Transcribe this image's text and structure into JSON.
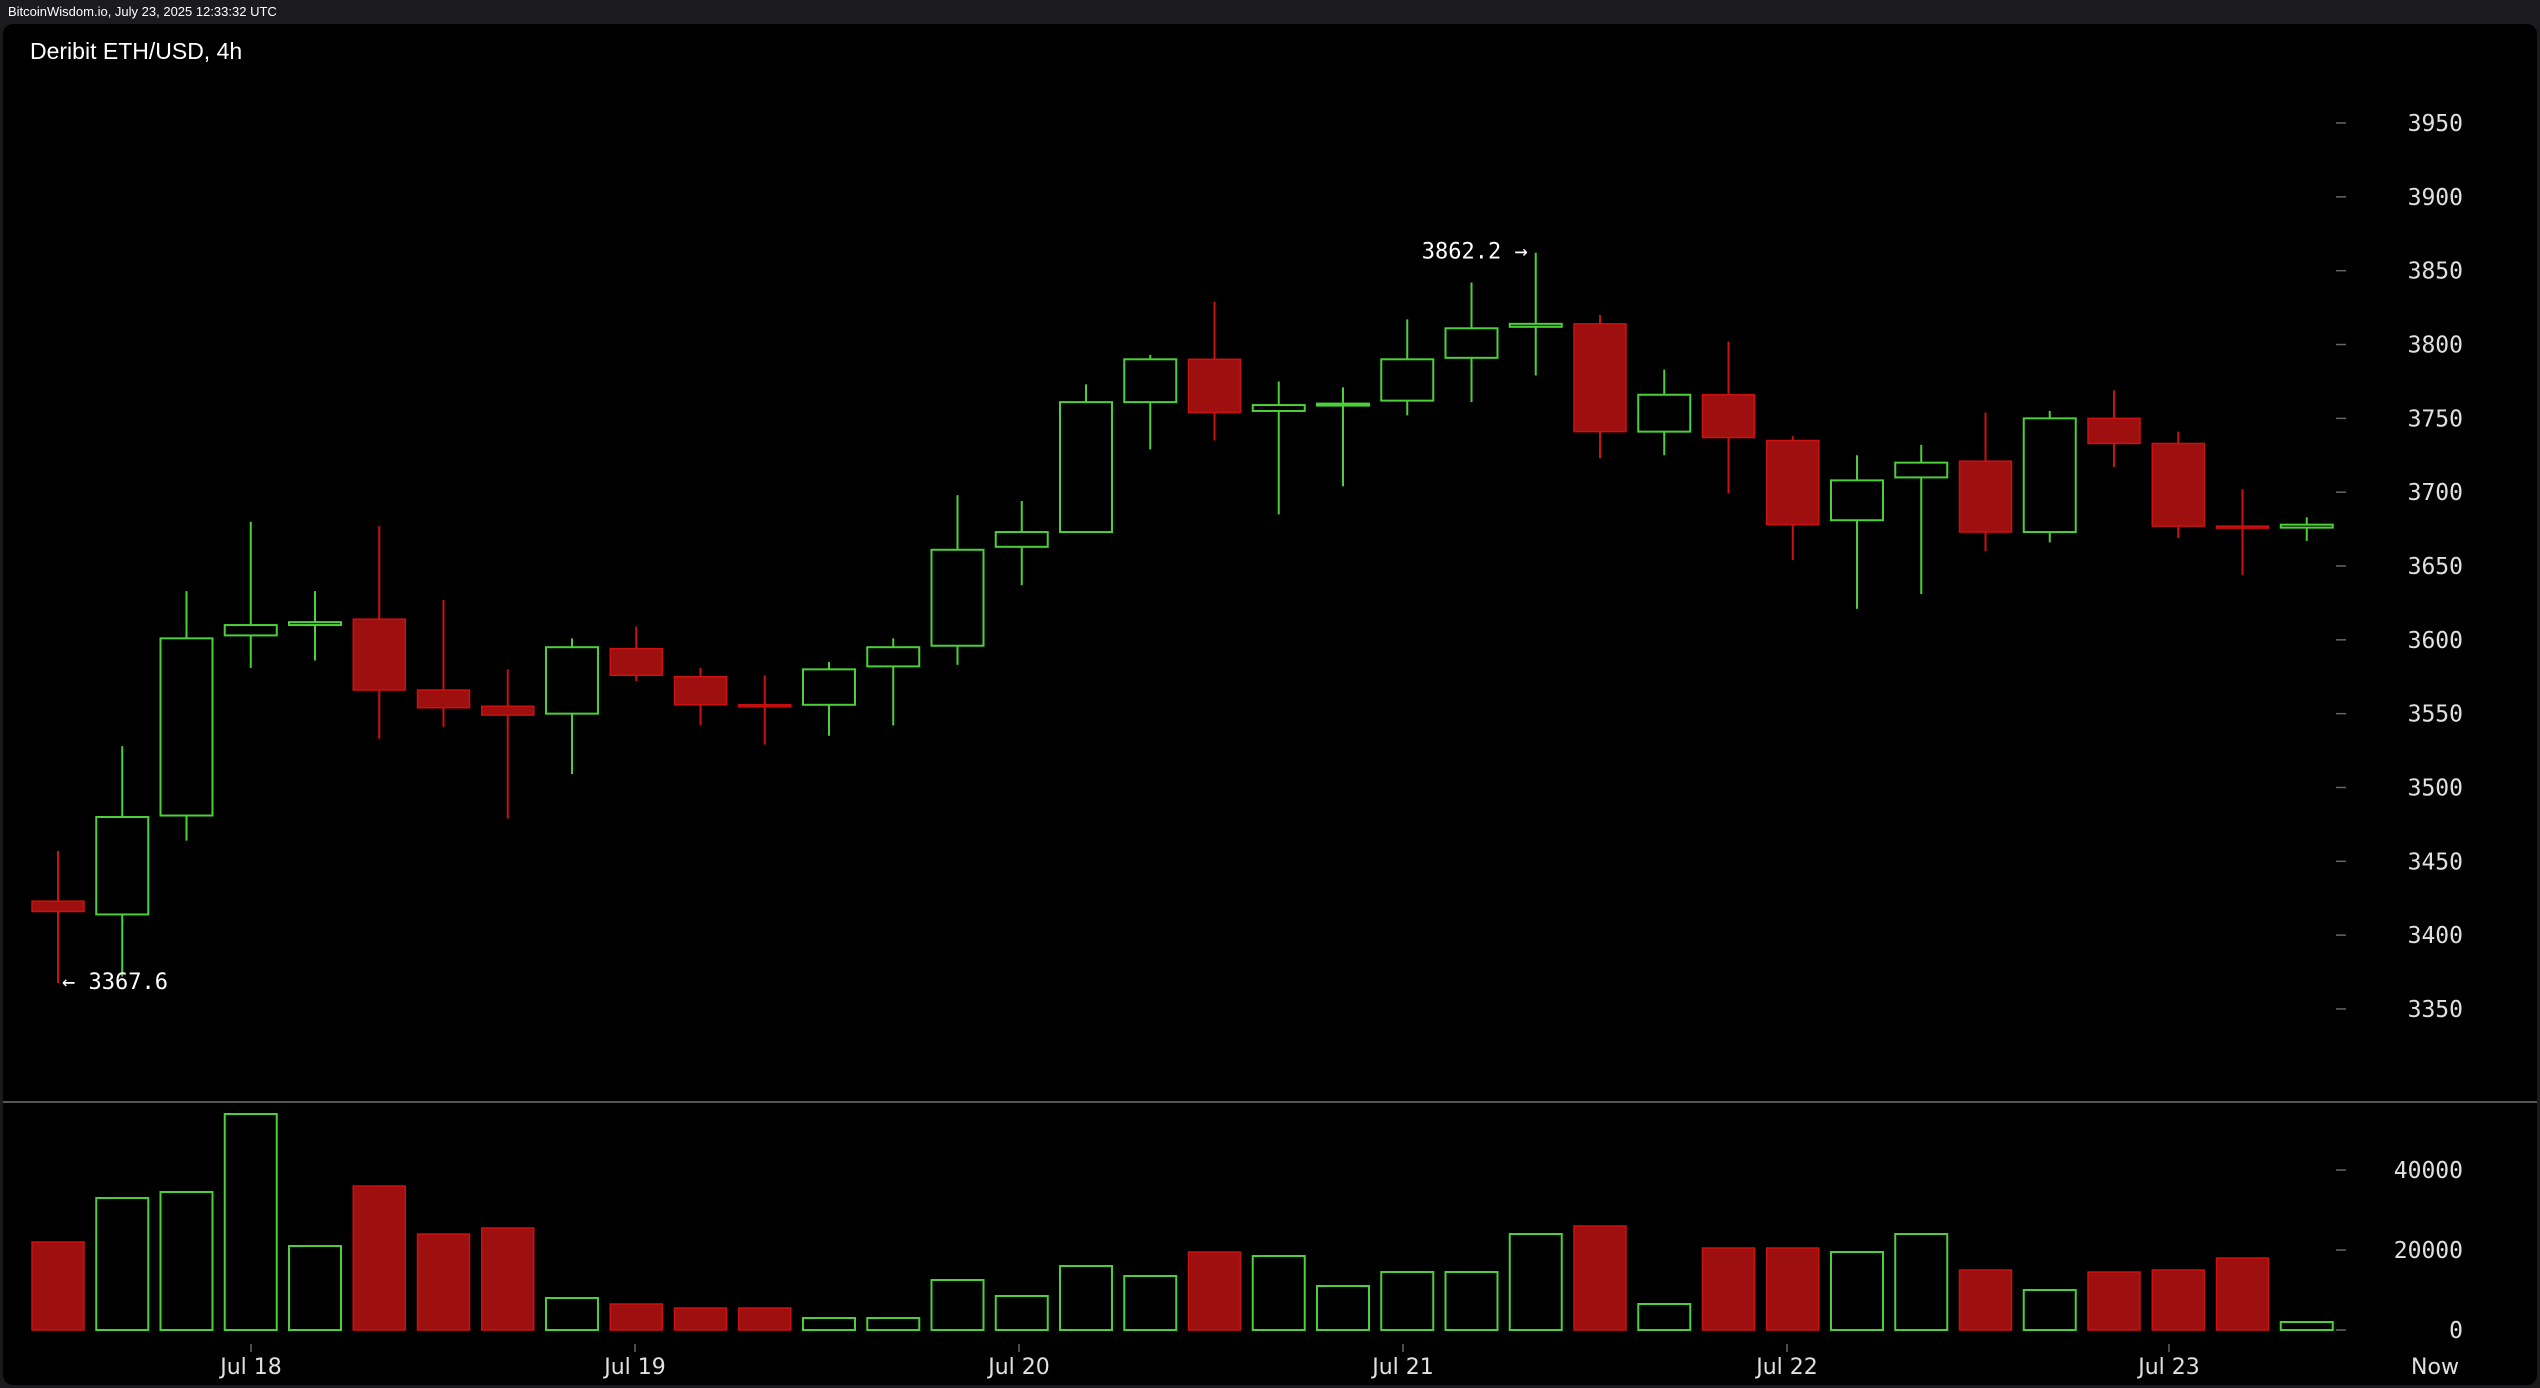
{
  "header": {
    "watermark": "BitcoinWisdom.io, July 23, 2025 12:33:32 UTC"
  },
  "chart_data": {
    "type": "candlestick",
    "title": "Deribit ETH/USD, 4h",
    "colors": {
      "up": "#4cd038",
      "down": "#cc1111",
      "background": "#000000",
      "text": "#e0e0e0"
    },
    "price_axis": {
      "range": [
        3310,
        3990
      ],
      "ticks": [
        3350,
        3400,
        3450,
        3500,
        3550,
        3600,
        3650,
        3700,
        3750,
        3800,
        3850,
        3900,
        3950
      ],
      "position": "right"
    },
    "volume_axis": {
      "range": [
        0,
        56000
      ],
      "ticks": [
        0,
        20000,
        40000
      ],
      "position": "right"
    },
    "x_labels": [
      "Jul 18",
      "Jul 19",
      "Jul 20",
      "Jul 21",
      "Jul 22",
      "Jul 23",
      "Now"
    ],
    "annotations": [
      {
        "text": "3862.2 →",
        "price": 3862.2,
        "candle": 23,
        "type": "high"
      },
      {
        "text": "← 3367.6",
        "price": 3367.6,
        "candle": 0,
        "type": "low"
      }
    ],
    "candles": [
      {
        "o": 3423,
        "h": 3457,
        "l": 3367.6,
        "c": 3416,
        "v": 22000
      },
      {
        "o": 3414,
        "h": 3528,
        "l": 3372,
        "c": 3480,
        "v": 33000
      },
      {
        "o": 3481,
        "h": 3633,
        "l": 3464,
        "c": 3601,
        "v": 34500
      },
      {
        "o": 3603,
        "h": 3680,
        "l": 3581,
        "c": 3610,
        "v": 54000
      },
      {
        "o": 3610,
        "h": 3633,
        "l": 3586,
        "c": 3612,
        "v": 21000
      },
      {
        "o": 3614,
        "h": 3677,
        "l": 3533,
        "c": 3566,
        "v": 36000
      },
      {
        "o": 3566,
        "h": 3627,
        "l": 3541,
        "c": 3554,
        "v": 24000
      },
      {
        "o": 3555,
        "h": 3580,
        "l": 3479,
        "c": 3549,
        "v": 25500
      },
      {
        "o": 3550,
        "h": 3601,
        "l": 3509,
        "c": 3595,
        "v": 8000
      },
      {
        "o": 3594,
        "h": 3609,
        "l": 3572,
        "c": 3576,
        "v": 6500
      },
      {
        "o": 3575,
        "h": 3581,
        "l": 3542,
        "c": 3556,
        "v": 5500
      },
      {
        "o": 3556,
        "h": 3576,
        "l": 3529,
        "c": 3555,
        "v": 5500
      },
      {
        "o": 3556,
        "h": 3585,
        "l": 3535,
        "c": 3580,
        "v": 3000
      },
      {
        "o": 3582,
        "h": 3601,
        "l": 3542,
        "c": 3595,
        "v": 3000
      },
      {
        "o": 3596,
        "h": 3698,
        "l": 3583,
        "c": 3661,
        "v": 12500
      },
      {
        "o": 3663,
        "h": 3694,
        "l": 3637,
        "c": 3673,
        "v": 8500
      },
      {
        "o": 3673,
        "h": 3773,
        "l": 3673,
        "c": 3761,
        "v": 16000
      },
      {
        "o": 3761,
        "h": 3793,
        "l": 3729,
        "c": 3790,
        "v": 13500
      },
      {
        "o": 3790,
        "h": 3829,
        "l": 3735,
        "c": 3754,
        "v": 19500
      },
      {
        "o": 3755,
        "h": 3775,
        "l": 3685,
        "c": 3759,
        "v": 18500
      },
      {
        "o": 3760,
        "h": 3771,
        "l": 3704,
        "c": 3760,
        "v": 11000
      },
      {
        "o": 3762,
        "h": 3817,
        "l": 3752,
        "c": 3790,
        "v": 14500
      },
      {
        "o": 3791,
        "h": 3842,
        "l": 3761,
        "c": 3811,
        "v": 14500
      },
      {
        "o": 3812,
        "h": 3862.2,
        "l": 3779,
        "c": 3814,
        "v": 24000
      },
      {
        "o": 3814,
        "h": 3820,
        "l": 3723,
        "c": 3741,
        "v": 26000
      },
      {
        "o": 3741,
        "h": 3783,
        "l": 3725,
        "c": 3766,
        "v": 6500
      },
      {
        "o": 3766,
        "h": 3802,
        "l": 3699,
        "c": 3737,
        "v": 20500
      },
      {
        "o": 3735,
        "h": 3738,
        "l": 3654,
        "c": 3678,
        "v": 20500
      },
      {
        "o": 3681,
        "h": 3725,
        "l": 3621,
        "c": 3708,
        "v": 19500
      },
      {
        "o": 3710,
        "h": 3732,
        "l": 3631,
        "c": 3720,
        "v": 24000
      },
      {
        "o": 3721,
        "h": 3754,
        "l": 3660,
        "c": 3673,
        "v": 15000
      },
      {
        "o": 3673,
        "h": 3755,
        "l": 3666,
        "c": 3750,
        "v": 10000
      },
      {
        "o": 3750,
        "h": 3769,
        "l": 3717,
        "c": 3733,
        "v": 14500
      },
      {
        "o": 3733,
        "h": 3741,
        "l": 3669,
        "c": 3677,
        "v": 15000
      },
      {
        "o": 3677,
        "h": 3702,
        "l": 3644,
        "c": 3676,
        "v": 18000
      },
      {
        "o": 3676,
        "h": 3683,
        "l": 3667,
        "c": 3678,
        "v": 2000
      }
    ]
  }
}
